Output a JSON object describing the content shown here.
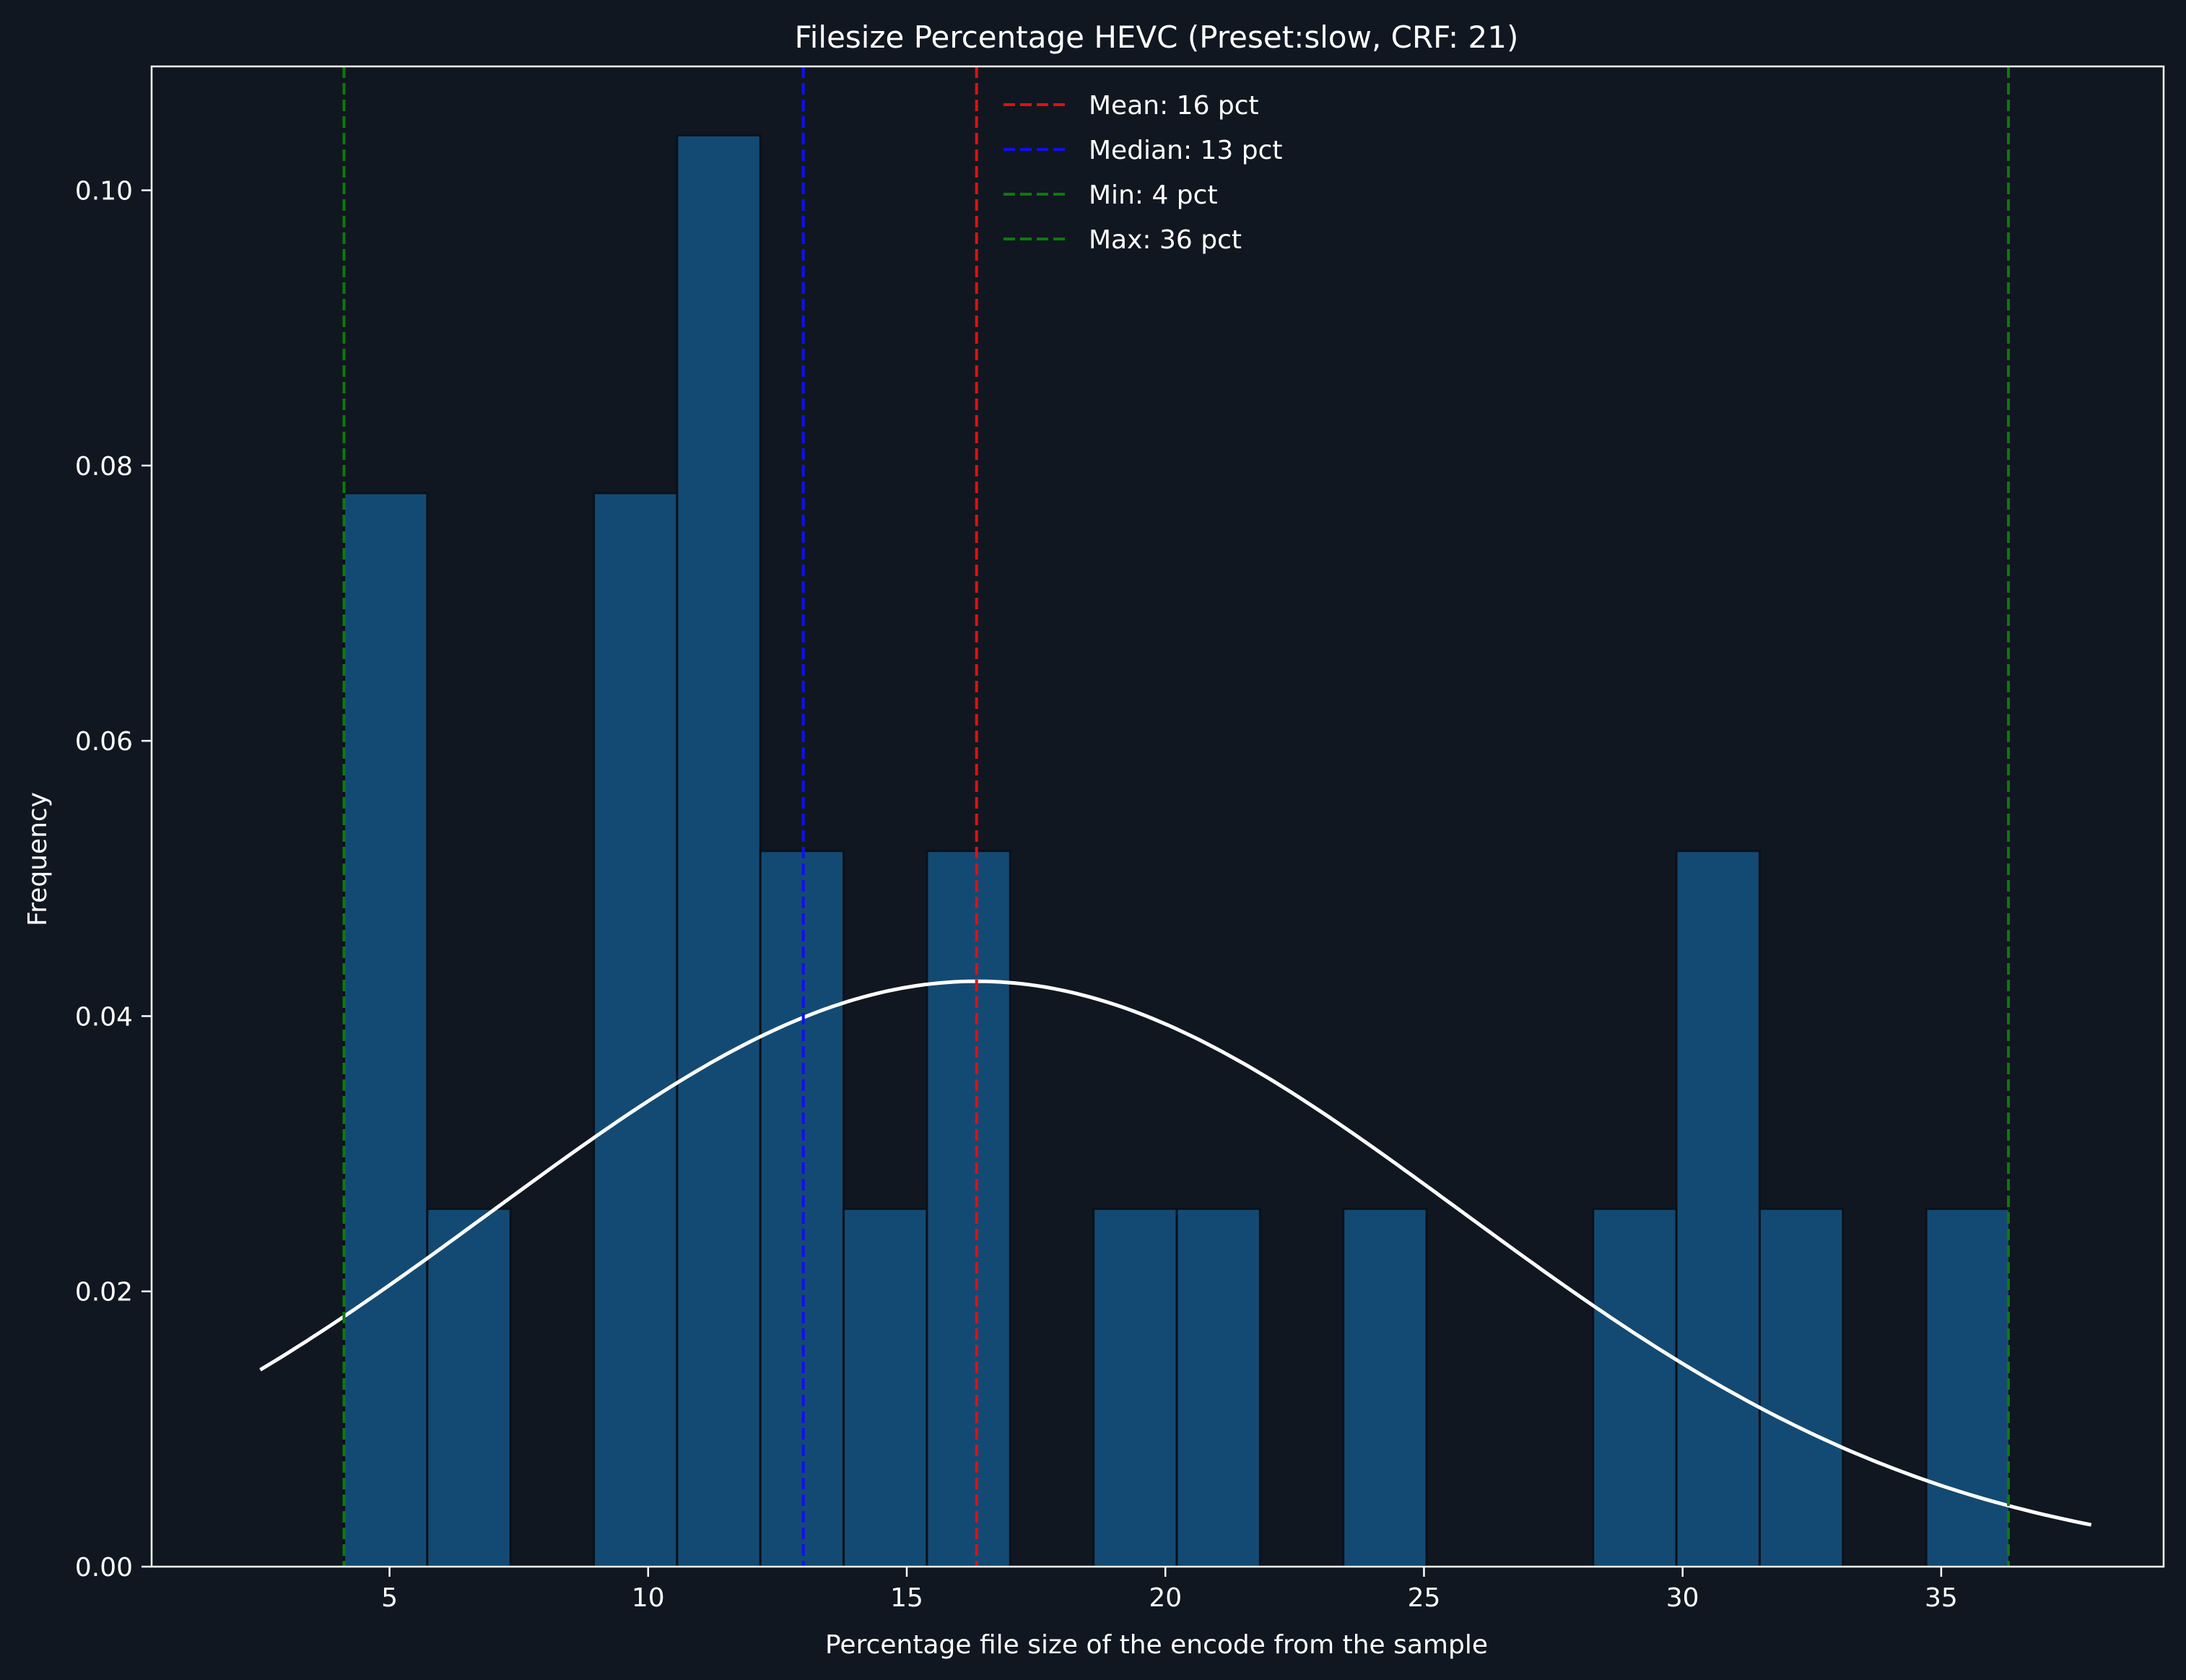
{
  "chart_data": {
    "type": "bar",
    "title": "Filesize Percentage HEVC (Preset:slow, CRF: 21)",
    "xlabel": "Percentage file size of the encode from the sample",
    "ylabel": "Frequency",
    "xlim": [
      0.4,
      39.3
    ],
    "ylim": [
      0,
      0.109
    ],
    "xticks": [
      5,
      10,
      15,
      20,
      25,
      30,
      35
    ],
    "yticks": [
      0.0,
      0.02,
      0.04,
      0.06,
      0.08,
      0.1
    ],
    "ytick_labels": [
      "0.00",
      "0.02",
      "0.04",
      "0.06",
      "0.08",
      "0.10"
    ],
    "grid": false,
    "bin_width": 1.61,
    "bins": [
      {
        "left": 4.12,
        "value": 0.078
      },
      {
        "left": 5.73,
        "value": 0.026
      },
      {
        "left": 7.34,
        "value": 0
      },
      {
        "left": 8.95,
        "value": 0.078
      },
      {
        "left": 10.56,
        "value": 0.104
      },
      {
        "left": 12.17,
        "value": 0.052
      },
      {
        "left": 13.78,
        "value": 0.026
      },
      {
        "left": 15.39,
        "value": 0.052
      },
      {
        "left": 17.0,
        "value": 0
      },
      {
        "left": 18.61,
        "value": 0.026
      },
      {
        "left": 20.22,
        "value": 0.026
      },
      {
        "left": 21.83,
        "value": 0
      },
      {
        "left": 23.44,
        "value": 0.026
      },
      {
        "left": 25.05,
        "value": 0
      },
      {
        "left": 26.66,
        "value": 0
      },
      {
        "left": 28.27,
        "value": 0.026
      },
      {
        "left": 29.88,
        "value": 0.052
      },
      {
        "left": 31.49,
        "value": 0.026
      },
      {
        "left": 33.1,
        "value": 0
      },
      {
        "left": 34.71,
        "value": 0.026
      }
    ],
    "curve": {
      "type": "normal_pdf",
      "mean": 16.35,
      "std": 9.38,
      "x_range": [
        2.5,
        37.9
      ]
    },
    "vlines": [
      {
        "x": 16.35,
        "label": "Mean: 16 pct",
        "color": "#e01010"
      },
      {
        "x": 13.0,
        "label": "Median: 13 pct",
        "color": "#1010ee"
      },
      {
        "x": 4.12,
        "label": "Min: 4 pct",
        "color": "#0d7a0d"
      },
      {
        "x": 36.3,
        "label": "Max: 36 pct",
        "color": "#0d7a0d"
      }
    ],
    "legend_position": "top-center"
  },
  "colors": {
    "background": "#111720",
    "bar_fill": "#134a73",
    "bar_edge": "#0b1118",
    "curve": "#ffffff",
    "axis": "#ffffff",
    "text": "#ffffff"
  }
}
